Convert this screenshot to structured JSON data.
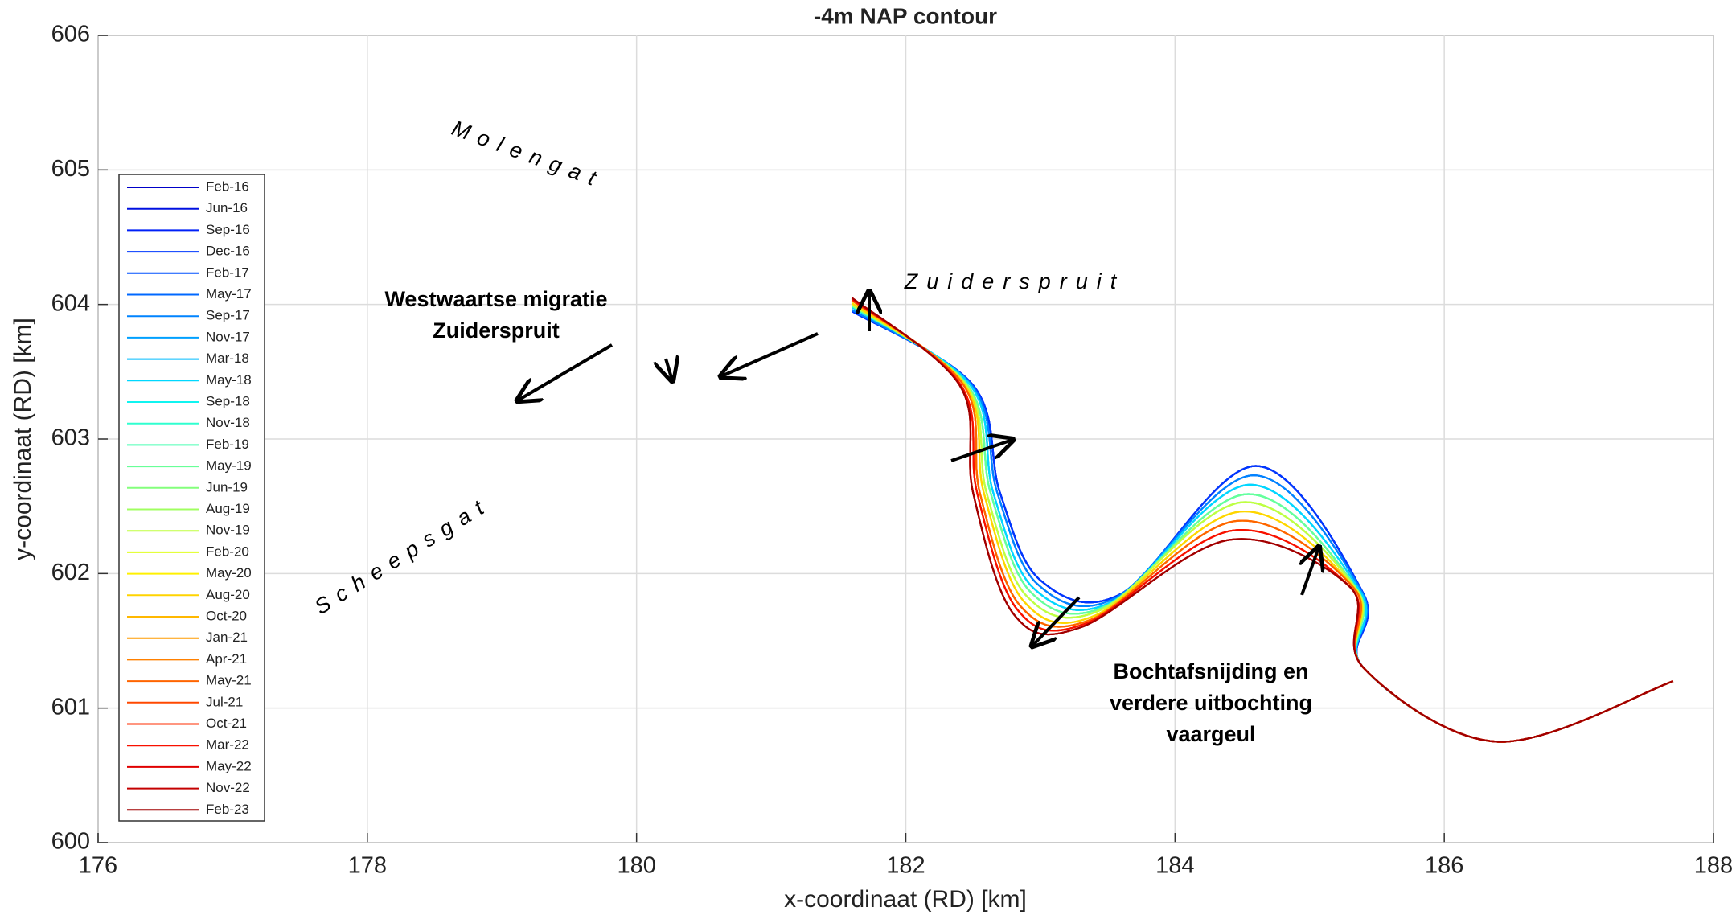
{
  "chart_data": {
    "type": "line",
    "title": "-4m NAP contour",
    "xlabel": "x-coordinaat (RD) [km]",
    "ylabel": "y-coordinaat (RD) [km]",
    "xlim": [
      176,
      188
    ],
    "xticks": [
      176,
      178,
      180,
      182,
      184,
      186,
      188
    ],
    "ylim": [
      600,
      606
    ],
    "yticks": [
      600,
      601,
      602,
      603,
      604,
      605,
      606
    ],
    "grid": true,
    "legend": "left",
    "annotations": [
      "Molengat",
      "Zuiderspruit",
      "Scheepsgat",
      [
        "Westwaartse migratie",
        "Zuiderspruit"
      ],
      [
        "Bochtafsnijding en",
        "verdere uitbochting",
        "vaargeul"
      ]
    ],
    "series": [
      {
        "name": "Feb-16",
        "color": "#0000c8",
        "x": [
          181.6,
          182.5,
          182.7,
          183.0,
          183.6,
          184.6,
          185.4,
          185.4,
          186.4,
          187.7
        ],
        "y": [
          603.95,
          603.4,
          602.6,
          601.95,
          601.85,
          602.8,
          601.85,
          601.3,
          600.75,
          601.2
        ]
      },
      {
        "name": "Jun-16",
        "color": "#0010e0",
        "x": [
          181.6,
          182.5,
          182.7,
          183.0,
          183.6,
          184.6,
          185.4,
          185.4,
          186.4,
          187.7
        ],
        "y": [
          603.95,
          603.4,
          602.6,
          601.95,
          601.85,
          602.8,
          601.85,
          601.3,
          600.75,
          601.2
        ]
      },
      {
        "name": "Sep-16",
        "color": "#0020f8",
        "x": [
          181.6,
          182.5,
          182.7,
          183.0,
          183.6,
          184.6,
          185.4,
          185.4,
          186.4,
          187.7
        ],
        "y": [
          603.95,
          603.4,
          602.6,
          601.95,
          601.85,
          602.8,
          601.85,
          601.3,
          600.75,
          601.2
        ]
      },
      {
        "name": "Dec-16",
        "color": "#0038ff",
        "x": [
          181.6,
          182.5,
          182.7,
          183.0,
          183.6,
          184.6,
          185.4,
          185.4,
          186.4,
          187.7
        ],
        "y": [
          603.95,
          603.4,
          602.6,
          601.95,
          601.85,
          602.8,
          601.85,
          601.3,
          600.75,
          601.2
        ]
      },
      {
        "name": "Feb-17",
        "color": "#0050ff",
        "x": [
          181.6,
          182.49,
          182.68,
          182.98,
          183.56,
          184.58,
          185.39,
          185.4,
          186.4,
          187.7
        ],
        "y": [
          603.96,
          603.4,
          602.6,
          601.92,
          601.82,
          602.73,
          601.86,
          601.3,
          600.75,
          601.2
        ]
      },
      {
        "name": "May-17",
        "color": "#0068ff",
        "x": [
          181.6,
          182.49,
          182.68,
          182.98,
          183.56,
          184.58,
          185.39,
          185.4,
          186.4,
          187.7
        ],
        "y": [
          603.96,
          603.4,
          602.6,
          601.92,
          601.82,
          602.73,
          601.86,
          601.3,
          600.75,
          601.2
        ]
      },
      {
        "name": "Sep-17",
        "color": "#0084ff",
        "x": [
          181.6,
          182.49,
          182.68,
          182.98,
          183.56,
          184.58,
          185.39,
          185.4,
          186.4,
          187.7
        ],
        "y": [
          603.96,
          603.4,
          602.6,
          601.92,
          601.82,
          602.73,
          601.86,
          601.3,
          600.75,
          601.2
        ]
      },
      {
        "name": "Nov-17",
        "color": "#00a0ff",
        "x": [
          181.6,
          182.48,
          182.65,
          182.95,
          183.53,
          184.55,
          185.38,
          185.4,
          186.4,
          187.7
        ],
        "y": [
          603.98,
          603.4,
          602.6,
          601.89,
          601.79,
          602.66,
          601.86,
          601.3,
          600.75,
          601.2
        ]
      },
      {
        "name": "Mar-18",
        "color": "#00bcff",
        "x": [
          181.6,
          182.48,
          182.65,
          182.95,
          183.53,
          184.55,
          185.38,
          185.4,
          186.4,
          187.7
        ],
        "y": [
          603.98,
          603.4,
          602.6,
          601.89,
          601.79,
          602.66,
          601.86,
          601.3,
          600.75,
          601.2
        ]
      },
      {
        "name": "May-18",
        "color": "#00d8ff",
        "x": [
          181.6,
          182.48,
          182.65,
          182.95,
          183.53,
          184.55,
          185.38,
          185.4,
          186.4,
          187.7
        ],
        "y": [
          603.98,
          603.4,
          602.6,
          601.89,
          601.79,
          602.66,
          601.86,
          601.3,
          600.75,
          601.2
        ]
      },
      {
        "name": "Sep-18",
        "color": "#10f4f0",
        "x": [
          181.6,
          182.46,
          182.63,
          182.93,
          183.49,
          184.53,
          185.36,
          185.4,
          186.4,
          187.7
        ],
        "y": [
          603.99,
          603.4,
          602.6,
          601.86,
          601.76,
          602.59,
          601.87,
          601.3,
          600.75,
          601.2
        ]
      },
      {
        "name": "Nov-18",
        "color": "#30ffd0",
        "x": [
          181.6,
          182.46,
          182.63,
          182.93,
          183.49,
          184.53,
          185.36,
          185.4,
          186.4,
          187.7
        ],
        "y": [
          603.99,
          603.4,
          602.6,
          601.86,
          601.76,
          602.59,
          601.87,
          601.3,
          600.75,
          601.2
        ]
      },
      {
        "name": "Feb-19",
        "color": "#4cffb4",
        "x": [
          181.6,
          182.46,
          182.63,
          182.93,
          183.49,
          184.53,
          185.36,
          185.4,
          186.4,
          187.7
        ],
        "y": [
          603.99,
          603.4,
          602.6,
          601.86,
          601.76,
          602.59,
          601.87,
          601.3,
          600.75,
          601.2
        ]
      },
      {
        "name": "May-19",
        "color": "#68ff98",
        "x": [
          181.6,
          182.46,
          182.63,
          182.93,
          183.49,
          184.53,
          185.36,
          185.4,
          186.4,
          187.7
        ],
        "y": [
          603.99,
          603.4,
          602.6,
          601.86,
          601.76,
          602.59,
          601.87,
          601.3,
          600.75,
          601.2
        ]
      },
      {
        "name": "Jun-19",
        "color": "#84ff7c",
        "x": [
          181.6,
          182.45,
          182.6,
          182.9,
          183.45,
          184.5,
          185.35,
          185.4,
          186.4,
          187.7
        ],
        "y": [
          604.0,
          603.4,
          602.6,
          601.83,
          601.73,
          602.53,
          601.88,
          601.3,
          600.75,
          601.2
        ]
      },
      {
        "name": "Aug-19",
        "color": "#a0ff60",
        "x": [
          181.6,
          182.45,
          182.6,
          182.9,
          183.45,
          184.5,
          185.35,
          185.4,
          186.4,
          187.7
        ],
        "y": [
          604.0,
          603.4,
          602.6,
          601.83,
          601.73,
          602.53,
          601.88,
          601.3,
          600.75,
          601.2
        ]
      },
      {
        "name": "Nov-19",
        "color": "#c0ff40",
        "x": [
          181.6,
          182.45,
          182.6,
          182.9,
          183.45,
          184.5,
          185.35,
          185.4,
          186.4,
          187.7
        ],
        "y": [
          604.0,
          603.4,
          602.6,
          601.83,
          601.73,
          602.53,
          601.88,
          601.3,
          600.75,
          601.2
        ]
      },
      {
        "name": "Feb-20",
        "color": "#e0ff20",
        "x": [
          181.6,
          182.44,
          182.58,
          182.88,
          183.41,
          184.48,
          185.34,
          185.4,
          186.4,
          187.7
        ],
        "y": [
          604.01,
          603.4,
          602.6,
          601.79,
          601.69,
          602.46,
          601.88,
          601.3,
          600.75,
          601.2
        ]
      },
      {
        "name": "May-20",
        "color": "#fff000",
        "x": [
          181.6,
          182.44,
          182.58,
          182.88,
          183.41,
          184.48,
          185.34,
          185.4,
          186.4,
          187.7
        ],
        "y": [
          604.01,
          603.4,
          602.6,
          601.79,
          601.69,
          602.46,
          601.88,
          601.3,
          600.75,
          601.2
        ]
      },
      {
        "name": "Aug-20",
        "color": "#ffd400",
        "x": [
          181.6,
          182.44,
          182.58,
          182.88,
          183.41,
          184.48,
          185.34,
          185.4,
          186.4,
          187.7
        ],
        "y": [
          604.01,
          603.4,
          602.6,
          601.79,
          601.69,
          602.46,
          601.88,
          601.3,
          600.75,
          601.2
        ]
      },
      {
        "name": "Oct-20",
        "color": "#ffb800",
        "x": [
          181.6,
          182.43,
          182.55,
          182.85,
          183.38,
          184.45,
          185.33,
          185.4,
          186.4,
          187.7
        ],
        "y": [
          604.03,
          603.4,
          602.6,
          601.76,
          601.66,
          602.39,
          601.89,
          601.3,
          600.75,
          601.2
        ]
      },
      {
        "name": "Jan-21",
        "color": "#ff9c00",
        "x": [
          181.6,
          182.43,
          182.55,
          182.85,
          183.38,
          184.45,
          185.33,
          185.4,
          186.4,
          187.7
        ],
        "y": [
          604.03,
          603.4,
          602.6,
          601.76,
          601.66,
          602.39,
          601.89,
          601.3,
          600.75,
          601.2
        ]
      },
      {
        "name": "Apr-21",
        "color": "#ff8000",
        "x": [
          181.6,
          182.43,
          182.55,
          182.85,
          183.38,
          184.45,
          185.33,
          185.4,
          186.4,
          187.7
        ],
        "y": [
          604.03,
          603.4,
          602.6,
          601.76,
          601.66,
          602.39,
          601.89,
          601.3,
          600.75,
          601.2
        ]
      },
      {
        "name": "May-21",
        "color": "#ff6400",
        "x": [
          181.6,
          182.43,
          182.55,
          182.85,
          183.38,
          184.45,
          185.33,
          185.4,
          186.4,
          187.7
        ],
        "y": [
          604.03,
          603.4,
          602.6,
          601.76,
          601.66,
          602.39,
          601.89,
          601.3,
          600.75,
          601.2
        ]
      },
      {
        "name": "Jul-21",
        "color": "#ff4800",
        "x": [
          181.6,
          182.41,
          182.53,
          182.83,
          183.34,
          184.43,
          185.31,
          185.4,
          186.4,
          187.7
        ],
        "y": [
          604.04,
          603.4,
          602.6,
          601.73,
          601.63,
          602.32,
          601.89,
          601.3,
          600.75,
          601.2
        ]
      },
      {
        "name": "Oct-21",
        "color": "#ff2c00",
        "x": [
          181.6,
          182.41,
          182.53,
          182.83,
          183.34,
          184.43,
          185.31,
          185.4,
          186.4,
          187.7
        ],
        "y": [
          604.04,
          603.4,
          602.6,
          601.73,
          601.63,
          602.32,
          601.89,
          601.3,
          600.75,
          601.2
        ]
      },
      {
        "name": "Mar-22",
        "color": "#f81000",
        "x": [
          181.6,
          182.41,
          182.53,
          182.83,
          183.34,
          184.43,
          185.31,
          185.4,
          186.4,
          187.7
        ],
        "y": [
          604.04,
          603.4,
          602.6,
          601.73,
          601.63,
          602.32,
          601.89,
          601.3,
          600.75,
          601.2
        ]
      },
      {
        "name": "May-22",
        "color": "#e00000",
        "x": [
          181.6,
          182.4,
          182.5,
          182.8,
          183.3,
          184.4,
          185.3,
          185.4,
          186.4,
          187.7
        ],
        "y": [
          604.05,
          603.4,
          602.6,
          601.7,
          601.6,
          602.25,
          601.9,
          601.3,
          600.75,
          601.2
        ]
      },
      {
        "name": "Nov-22",
        "color": "#c40000",
        "x": [
          181.6,
          182.4,
          182.5,
          182.8,
          183.3,
          184.4,
          185.3,
          185.4,
          186.4,
          187.7
        ],
        "y": [
          604.05,
          603.4,
          602.6,
          601.7,
          601.6,
          602.25,
          601.9,
          601.3,
          600.75,
          601.2
        ]
      },
      {
        "name": "Feb-23",
        "color": "#a00000",
        "x": [
          181.6,
          182.4,
          182.5,
          182.8,
          183.3,
          184.4,
          185.3,
          185.4,
          186.4,
          187.7
        ],
        "y": [
          604.05,
          603.4,
          602.6,
          601.7,
          601.6,
          602.25,
          601.9,
          601.3,
          600.75,
          601.2
        ]
      }
    ]
  }
}
